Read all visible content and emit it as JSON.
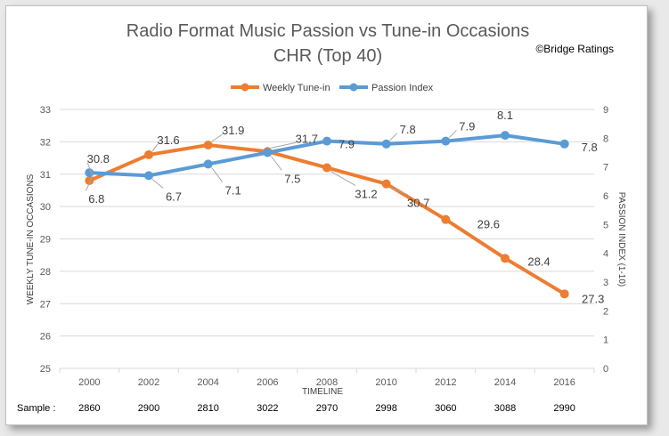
{
  "chart_data": {
    "type": "line",
    "title": "Radio Format Music Passion vs Tune-in Occasions",
    "subtitle": "CHR (Top 40)",
    "copyright": "©Bridge Ratings",
    "categories": [
      "2000",
      "2002",
      "2004",
      "2006",
      "2008",
      "2010",
      "2012",
      "2014",
      "2016"
    ],
    "xlabel": "TIMELINE",
    "ylabel": "WEEKLY TUNE-IN OCCASIONS",
    "y2label": "PASSION INDEX (1-10)",
    "ylim": [
      25,
      33
    ],
    "y2lim": [
      0,
      9
    ],
    "yticks": [
      "25",
      "26",
      "27",
      "28",
      "29",
      "30",
      "31",
      "32",
      "33"
    ],
    "y2ticks": [
      "0",
      "1",
      "2",
      "3",
      "4",
      "5",
      "6",
      "7",
      "8",
      "9"
    ],
    "grid": true,
    "legend_position": "top",
    "series": [
      {
        "name": "Weekly Tune-in",
        "axis": "left",
        "color": "#ed7d31",
        "values": [
          30.8,
          31.6,
          31.9,
          31.7,
          31.2,
          30.7,
          29.6,
          28.4,
          27.3
        ],
        "labels": [
          "30.8",
          "31.6",
          "31.9",
          "31.7",
          "31.2",
          "30.7",
          "29.6",
          "28.4",
          "27.3"
        ]
      },
      {
        "name": "Passion Index",
        "axis": "right",
        "color": "#5b9bd5",
        "values": [
          6.8,
          6.7,
          7.1,
          7.5,
          7.9,
          7.8,
          7.9,
          8.1,
          7.8
        ],
        "labels": [
          "6.8",
          "6.7",
          "7.1",
          "7.5",
          "7.9",
          "7.8",
          "7.9",
          "8.1",
          "7.8"
        ]
      }
    ],
    "sample_label": "Sample :",
    "samples": [
      "2860",
      "2900",
      "2810",
      "3022",
      "2970",
      "2998",
      "3060",
      "3088",
      "2990"
    ]
  }
}
